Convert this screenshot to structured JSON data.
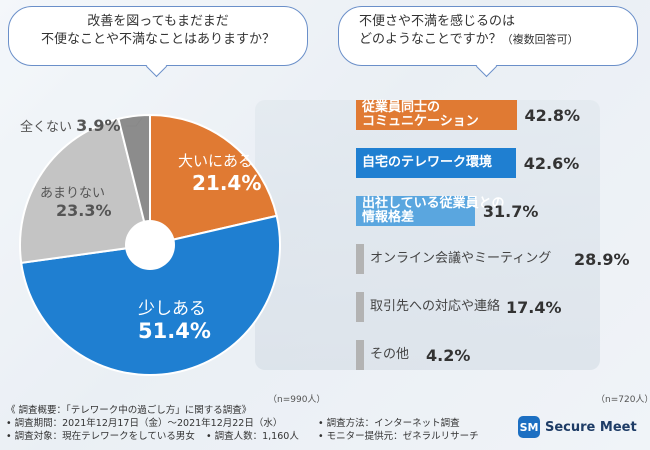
{
  "question_left": {
    "line1": "改善を図ってもまだまだ",
    "line2": "不便なことや不満なことはありますか？"
  },
  "question_right": {
    "line1": "不便さや不満を感じるのは",
    "line2": "どのようなことですか？",
    "note": "（複数回答可）"
  },
  "colors": {
    "orange": "#e07a33",
    "blue": "#1f7fd1",
    "light_blue": "#5aa6df",
    "gray": "#b3b3b3",
    "dark_gray": "#8c8c8c"
  },
  "chart_data": [
    {
      "type": "pie",
      "n_label": "（n=990人）",
      "slices": [
        {
          "label": "大いにある",
          "value": 21.4,
          "display": "21.4%",
          "color": "#e07a33"
        },
        {
          "label": "少しある",
          "value": 51.4,
          "display": "51.4%",
          "color": "#1f7fd1"
        },
        {
          "label": "あまりない",
          "value": 23.3,
          "display": "23.3%",
          "color": "#c4c4c4"
        },
        {
          "label": "全くない",
          "value": 3.9,
          "display": "3.9%",
          "color": "#8c8c8c"
        }
      ]
    },
    {
      "type": "bar",
      "n_label": "（n=720人）",
      "bars": [
        {
          "label1": "従業員同士の",
          "label2": "コミュニケーション",
          "value": 42.8,
          "display": "42.8%",
          "color": "#e07a33"
        },
        {
          "label1": "自宅のテレワーク環境",
          "label2": "",
          "value": 42.6,
          "display": "42.6%",
          "color": "#1f7fd1"
        },
        {
          "label1": "出社している従業員との",
          "label2": "情報格差",
          "value": 31.7,
          "display": "31.7%",
          "color": "#5aa6df"
        },
        {
          "label1": "オンライン会議やミーティング",
          "label2": "",
          "value": 28.9,
          "display": "28.9%",
          "color": "#b3b3b3"
        },
        {
          "label1": "取引先への対応や連絡",
          "label2": "",
          "value": 17.4,
          "display": "17.4%",
          "color": "#b3b3b3"
        },
        {
          "label1": "その他",
          "label2": "",
          "value": 4.2,
          "display": "4.2%",
          "color": "#b3b3b3"
        }
      ]
    }
  ],
  "footer": {
    "title": "《 調査概要：「テレワーク中の過ごし方」に関する調査》",
    "period": "• 調査期間：2021年12月17日（金）〜2021年12月22日（水）",
    "target": "• 調査対象：現在テレワークをしている男女",
    "count": "• 調査人数：1,160人",
    "method": "• 調査方法：インターネット調査",
    "provider": "• モニター提供元：ゼネラルリサーチ"
  },
  "logo": {
    "text": "Secure Meet",
    "mark": "SM"
  }
}
